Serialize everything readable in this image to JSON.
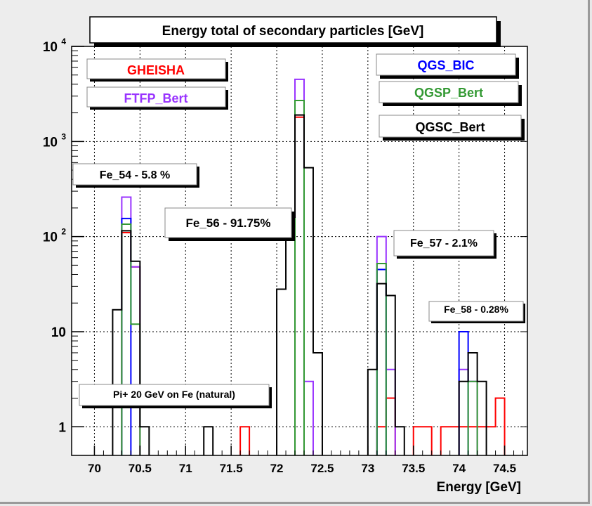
{
  "chart_data": {
    "type": "histogram",
    "title": "Energy total of secondary particles [GeV]",
    "xlabel": "Energy [GeV]",
    "ylabel": "",
    "y_scale": "log",
    "xlim": [
      69.75,
      74.75
    ],
    "ylim": [
      0.5,
      10000
    ],
    "bin_width": 0.1,
    "bin_start": 69.75,
    "x_ticks": [
      {
        "value": 70.0,
        "label": "70"
      },
      {
        "value": 70.5,
        "label": "70.5"
      },
      {
        "value": 71.0,
        "label": "71"
      },
      {
        "value": 71.5,
        "label": "71.5"
      },
      {
        "value": 72.0,
        "label": "72"
      },
      {
        "value": 72.5,
        "label": "72.5"
      },
      {
        "value": 73.0,
        "label": "73"
      },
      {
        "value": 73.5,
        "label": "73.5"
      },
      {
        "value": 74.0,
        "label": "74"
      },
      {
        "value": 74.5,
        "label": "74.5"
      }
    ],
    "y_ticks": [
      {
        "value": 1,
        "label": "1"
      },
      {
        "value": 10,
        "label": "10"
      },
      {
        "value": 100,
        "base": "10",
        "exp": "2"
      },
      {
        "value": 1000,
        "base": "10",
        "exp": "3"
      },
      {
        "value": 10000,
        "base": "10",
        "exp": "4"
      }
    ],
    "grid": true,
    "series": [
      {
        "name": "GHEISHA",
        "color": "#ff0000",
        "bins": {
          "70.35": 110,
          "70.45": 48,
          "71.65": 1,
          "72.25": 1800,
          "73.15": 1,
          "73.25": 2,
          "73.55": 1,
          "73.65": 1,
          "73.85": 1,
          "73.95": 1,
          "74.05": 1,
          "74.15": 1,
          "74.25": 1,
          "74.35": 1,
          "74.45": 2
        }
      },
      {
        "name": "FTFP_Bert",
        "color": "#9933ff",
        "bins": {
          "70.35": 260,
          "70.45": 48,
          "72.25": 4500,
          "72.35": 3,
          "73.15": 100,
          "73.25": 4,
          "74.05": 4,
          "74.15": 3
        }
      },
      {
        "name": "QGS_BIC",
        "color": "#0000ff",
        "bins": {
          "70.35": 155,
          "72.25": 2700,
          "73.15": 45,
          "74.05": 10
        }
      },
      {
        "name": "QGSP_Bert",
        "color": "#339933",
        "bins": {
          "70.35": 135,
          "70.45": 12,
          "72.25": 2700,
          "73.15": 52,
          "74.15": 3
        }
      },
      {
        "name": "QGSC_Bert",
        "color": "#000000",
        "bins": {
          "70.25": 17,
          "70.35": 115,
          "70.45": 55,
          "70.55": 1,
          "71.25": 1,
          "72.05": 28,
          "72.15": 160,
          "72.25": 1900,
          "72.35": 530,
          "72.45": 6,
          "73.05": 4,
          "73.15": 32,
          "73.25": 24,
          "73.35": 1,
          "74.05": 3,
          "74.15": 6,
          "74.25": 3
        }
      }
    ],
    "annotations": {
      "fe54": "Fe_54 - 5.8 %",
      "fe56": "Fe_56 - 91.75%",
      "fe57": "Fe_57 - 2.1%",
      "fe58": "Fe_58 - 0.28%",
      "beam": "Pi+ 20 GeV on Fe (natural)"
    }
  }
}
